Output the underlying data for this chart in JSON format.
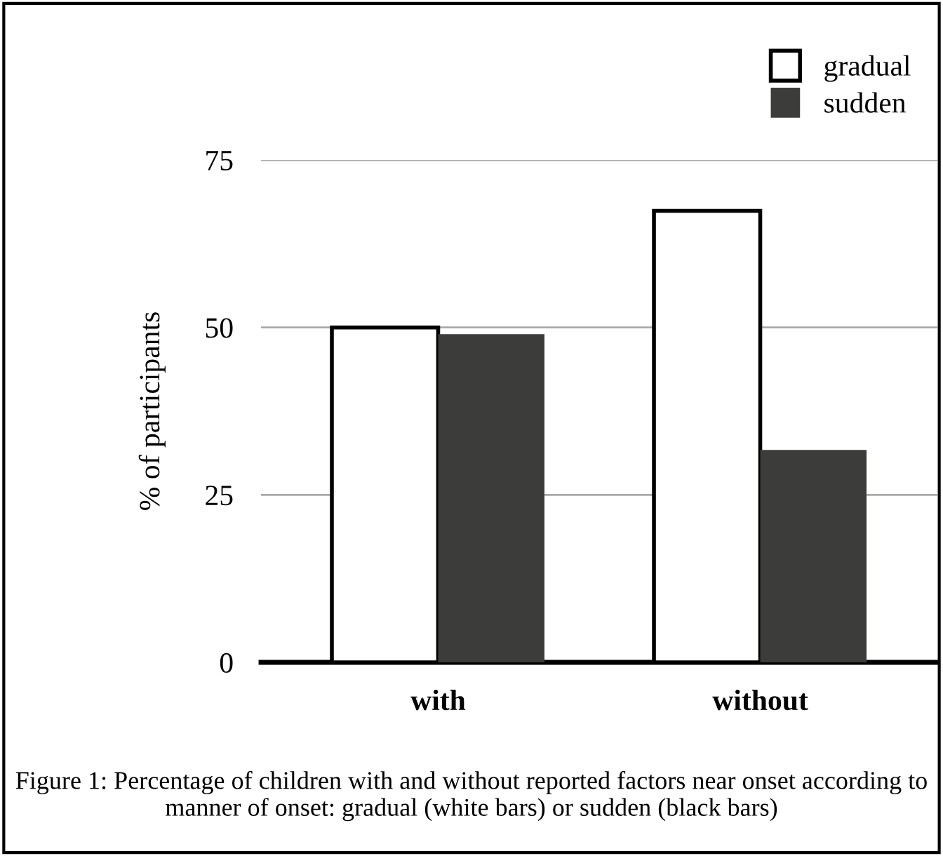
{
  "chart_data": {
    "type": "bar",
    "ylabel": "% of participants",
    "categories": [
      "with",
      "without"
    ],
    "series": [
      {
        "name": "gradual",
        "color": "#ffffff",
        "values": [
          50,
          67.4
        ]
      },
      {
        "name": "sudden",
        "color": "#3c3d3a",
        "values": [
          49,
          31.7
        ]
      }
    ],
    "ylim": [
      0,
      75
    ],
    "yticks": [
      0,
      25,
      50,
      75
    ],
    "grid": "y",
    "legend": "top right",
    "annotations": [
      "Figure 1: Percentage of children with and without reported factors near onset according to manner of onset: gradual (white bars) or sudden (black bars)"
    ]
  }
}
